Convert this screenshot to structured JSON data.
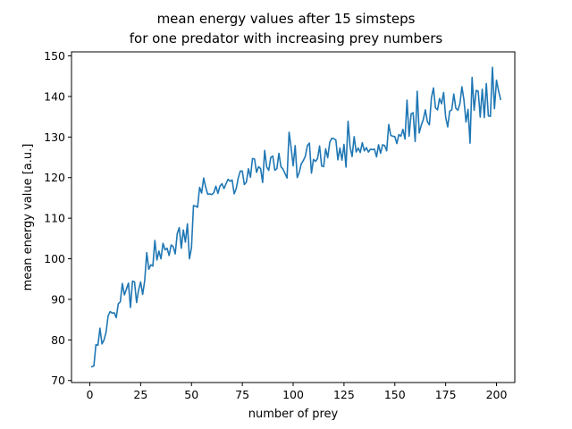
{
  "chart_data": {
    "type": "line",
    "title_lines": [
      "mean energy values after 15 simsteps",
      "for one predator with increasing prey numbers"
    ],
    "xlabel": "number of prey",
    "ylabel": "mean energy value [a.u.]",
    "xlim": [
      -9,
      209
    ],
    "ylim": [
      69.5,
      151
    ],
    "xticks": [
      0,
      25,
      50,
      75,
      100,
      125,
      150,
      175,
      200
    ],
    "yticks": [
      70,
      80,
      90,
      100,
      110,
      120,
      130,
      140,
      150
    ],
    "grid": false,
    "line_color": "#1f77b4",
    "series": [
      {
        "x_start": 1,
        "x_step": 1,
        "values": [
          73.4,
          73.6,
          78.8,
          78.7,
          82.9,
          79.0,
          80.0,
          81.9,
          85.9,
          87.0,
          86.6,
          86.7,
          85.5,
          88.9,
          89.4,
          93.9,
          91.1,
          92.5,
          94.0,
          88.0,
          94.5,
          94.3,
          89.2,
          92.3,
          94.3,
          91.2,
          94.6,
          101.5,
          97.4,
          98.5,
          98.2,
          104.5,
          99.7,
          101.9,
          100.0,
          103.8,
          102.2,
          102.6,
          100.8,
          103.4,
          103.0,
          101.2,
          106.2,
          107.7,
          102.6,
          107.1,
          104.1,
          108.6,
          100.0,
          102.7,
          113.1,
          113.0,
          112.7,
          117.6,
          116.2,
          119.9,
          117.6,
          115.9,
          116.0,
          115.8,
          116.3,
          117.9,
          116.1,
          117.9,
          118.5,
          117.3,
          118.5,
          119.6,
          119.1,
          119.4,
          116.0,
          117.3,
          119.9,
          121.6,
          121.6,
          118.3,
          118.9,
          122.2,
          120.1,
          124.7,
          124.6,
          121.3,
          122.7,
          122.2,
          118.8,
          126.7,
          122.6,
          121.8,
          125.0,
          125.3,
          121.8,
          122.2,
          126.0,
          122.7,
          122.1,
          121.0,
          119.9,
          131.2,
          127.4,
          122.9,
          127.9,
          120.0,
          121.3,
          123.4,
          124.2,
          125.3,
          127.9,
          128.5,
          121.1,
          124.5,
          124.0,
          124.7,
          127.8,
          122.9,
          122.7,
          127.1,
          124.9,
          128.7,
          129.7,
          129.6,
          129.3,
          124.4,
          127.3,
          124.3,
          128.2,
          122.6,
          133.9,
          127.6,
          125.2,
          130.1,
          126.3,
          127.3,
          126.2,
          128.6,
          126.6,
          127.4,
          126.3,
          127.0,
          126.9,
          127.0,
          125.1,
          128.1,
          126.0,
          128.1,
          127.9,
          126.6,
          133.1,
          130.4,
          130.2,
          130.1,
          128.4,
          130.6,
          130.2,
          131.9,
          129.5,
          139.1,
          130.2,
          135.7,
          136.0,
          128.9,
          141.3,
          131.0,
          132.9,
          134.3,
          136.7,
          133.8,
          133.0,
          139.7,
          142.1,
          137.2,
          136.7,
          139.5,
          138.2,
          141.0,
          134.9,
          132.5,
          136.4,
          136.7,
          140.6,
          137.1,
          136.6,
          138.2,
          142.4,
          139.1,
          133.7,
          136.8,
          128.5,
          144.7,
          136.6,
          141.5,
          141.3,
          134.9,
          141.8,
          134.8,
          143.2,
          135.2,
          135.1,
          147.2,
          137.0,
          144.0,
          141.4,
          139.3
        ]
      }
    ]
  }
}
